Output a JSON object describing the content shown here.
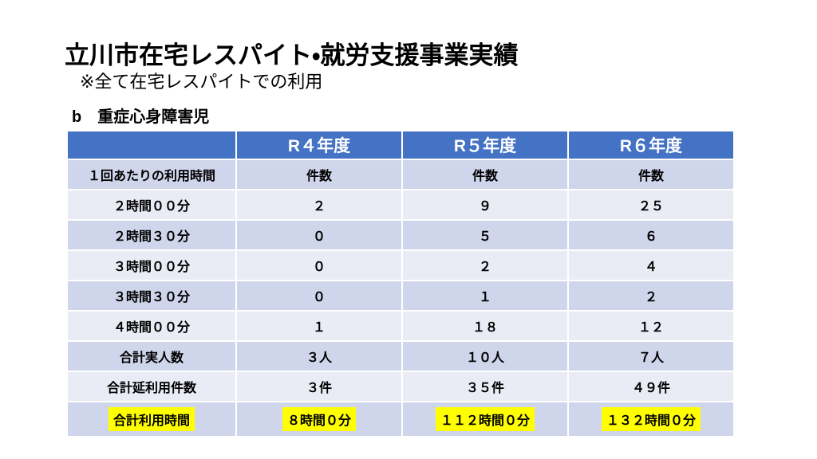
{
  "page": {
    "title": "立川市在宅レスパイト・就労支援事業実績",
    "subtitle": "※全て在宅レスパイトでの利用",
    "section_label": "b　重症心身障害児"
  },
  "table": {
    "header": [
      "",
      "R４年度",
      "R５年度",
      "R６年度"
    ],
    "rows": [
      {
        "kind": "subheader",
        "label": "１回あたりの利用時間",
        "values": [
          "件数",
          "件数",
          "件数"
        ]
      },
      {
        "kind": "data",
        "label": "２時間００分",
        "values": [
          "２",
          "９",
          "２５"
        ]
      },
      {
        "kind": "data",
        "label": "２時間３０分",
        "values": [
          "０",
          "５",
          "６"
        ]
      },
      {
        "kind": "data",
        "label": "３時間００分",
        "values": [
          "０",
          "２",
          "４"
        ]
      },
      {
        "kind": "data",
        "label": "３時間３０分",
        "values": [
          "０",
          "１",
          "２"
        ]
      },
      {
        "kind": "data",
        "label": "４時間００分",
        "values": [
          "１",
          "１８",
          "１２"
        ]
      },
      {
        "kind": "total",
        "label": "合計実人数",
        "values": [
          "３人",
          "１０人",
          "７人"
        ]
      },
      {
        "kind": "total",
        "label": "合計延利用件数",
        "values": [
          "３件",
          "３５件",
          "４９件"
        ]
      },
      {
        "kind": "highlight",
        "label": "合計利用時間",
        "values": [
          "８時間０分",
          "１１２時間０分",
          "１３２時間０分"
        ]
      }
    ]
  },
  "colors": {
    "header_bg": "#4472C4",
    "band_dark": "#CFD5EA",
    "band_light": "#E9EBF5",
    "total_text": "#1B75BC",
    "highlight_text": "#C4511D",
    "highlight_bg": "#FFFF00"
  }
}
